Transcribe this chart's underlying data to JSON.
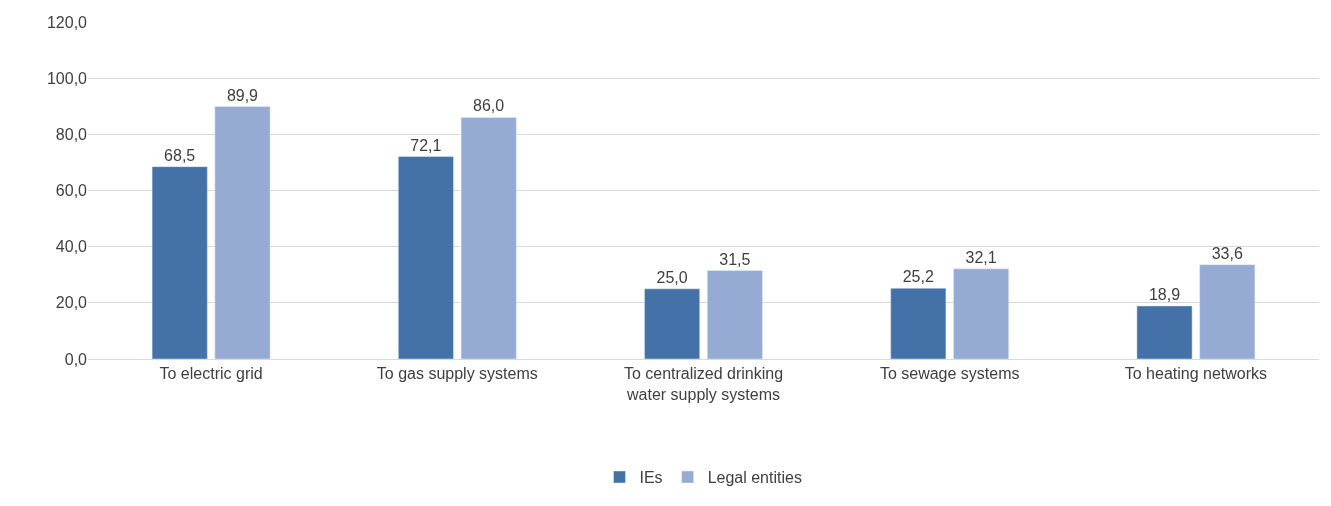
{
  "chart_data": {
    "type": "bar",
    "categories": [
      "To electric grid",
      "To gas supply systems",
      "To centralized drinking water supply systems",
      "To sewage systems",
      "To heating networks"
    ],
    "series": [
      {
        "name": "IEs",
        "color": "#4472a8",
        "values": [
          68.5,
          72.1,
          25.0,
          25.2,
          18.9
        ],
        "value_labels": [
          "68,5",
          "72,1",
          "25,0",
          "25,2",
          "18,9"
        ]
      },
      {
        "name": "Legal entities",
        "color": "#95abd3",
        "values": [
          89.9,
          86.0,
          31.5,
          32.1,
          33.6
        ],
        "value_labels": [
          "89,9",
          "86,0",
          "31,5",
          "32,1",
          "33,6"
        ]
      }
    ],
    "ylim": [
      0,
      120
    ],
    "yticks": [
      {
        "value": 0,
        "label": "0,0"
      },
      {
        "value": 20,
        "label": "20,0"
      },
      {
        "value": 40,
        "label": "40,0"
      },
      {
        "value": 60,
        "label": "60,0"
      },
      {
        "value": 80,
        "label": "80,0"
      },
      {
        "value": 100,
        "label": "100,0"
      },
      {
        "value": 120,
        "label": "120,0"
      }
    ],
    "grid": "y",
    "legend": "bottom"
  }
}
